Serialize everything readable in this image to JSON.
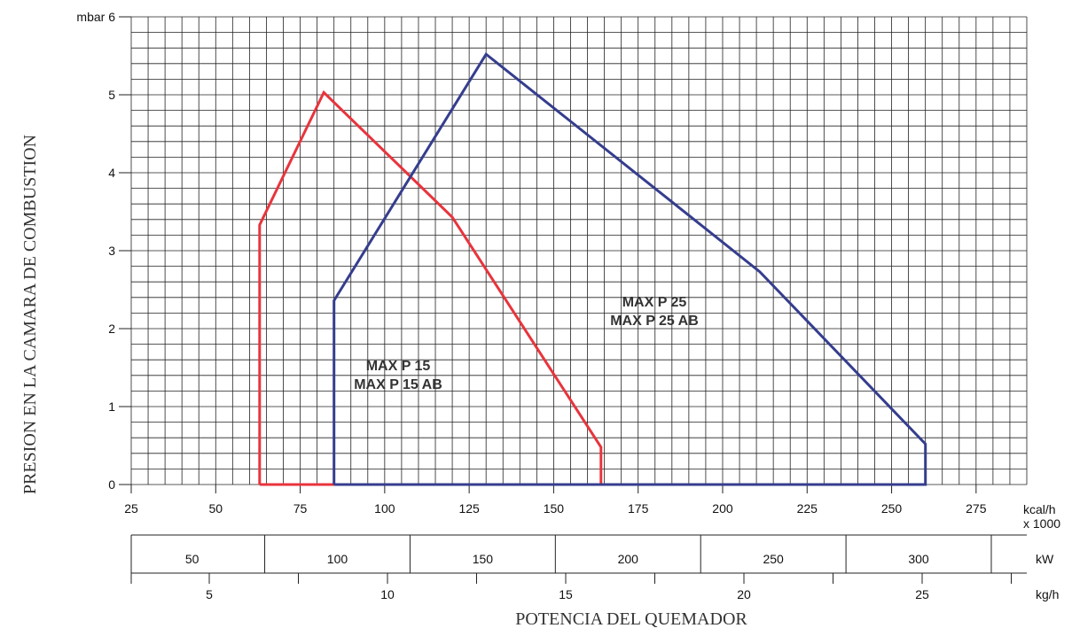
{
  "chart_data": {
    "type": "area",
    "ylabel": "PRESION EN LA CAMARA DE COMBUSTION",
    "xlabel": "POTENCIA DEL QUEMADOR",
    "y_unit": "mbar",
    "ylim": [
      0,
      6
    ],
    "y_ticks": [
      0,
      1,
      2,
      3,
      4,
      5,
      6
    ],
    "xlim": [
      25,
      290
    ],
    "x_ticks": [
      25,
      50,
      75,
      100,
      125,
      150,
      175,
      200,
      225,
      250,
      275
    ],
    "x_unit_line1": "kcal/h",
    "x_unit_line2": "x 1000",
    "grid": true,
    "secondary_axes": [
      {
        "unit": "kW",
        "ticks": [
          50,
          100,
          150,
          200,
          250,
          300
        ]
      },
      {
        "unit": "kg/h",
        "ticks": [
          5,
          10,
          15,
          20,
          25
        ]
      }
    ],
    "series": [
      {
        "name": "MAX P 15",
        "name2": "MAX P 15 AB",
        "color": "#e8343c",
        "points": [
          [
            63,
            0
          ],
          [
            63,
            3.33
          ],
          [
            82,
            5.03
          ],
          [
            120,
            3.43
          ],
          [
            164,
            0.48
          ],
          [
            164,
            0
          ],
          [
            63,
            0
          ]
        ]
      },
      {
        "name": "MAX P 25",
        "name2": "MAX P 25 AB",
        "color": "#353d8e",
        "points": [
          [
            85,
            0
          ],
          [
            85,
            2.36
          ],
          [
            130,
            5.52
          ],
          [
            211,
            2.73
          ],
          [
            260,
            0.52
          ],
          [
            260,
            0
          ],
          [
            85,
            0
          ]
        ]
      }
    ]
  }
}
